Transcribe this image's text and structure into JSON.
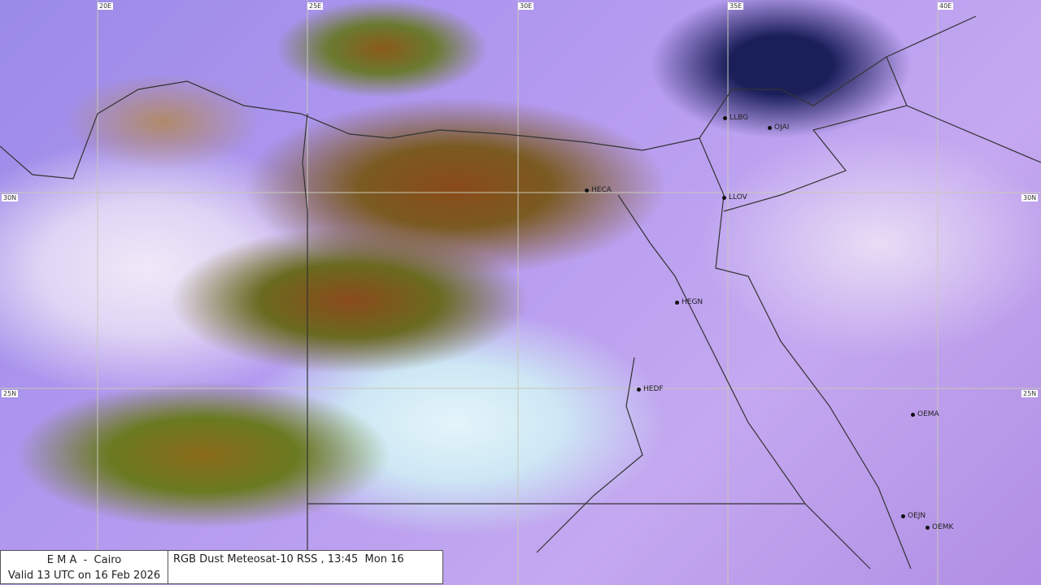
{
  "legend": {
    "agency": "E M A  -  Cairo",
    "valid": "Valid 13 UTC on 16 Feb 2026",
    "product": "RGB Dust Meteosat-10 RSS , 13:45  Mon 16"
  },
  "longitude_labels": [
    "20E",
    "25E",
    "30E",
    "35E",
    "40E"
  ],
  "latitude_labels": [
    "30N",
    "25N"
  ],
  "stations": [
    "HECA",
    "LLBG",
    "OJAI",
    "LLOV",
    "HEGN",
    "HEDF",
    "OEMA",
    "OEJN",
    "OEMK"
  ],
  "colors": {
    "dust": "#8a4a1a",
    "clear_desert": "#c4a8f0",
    "sea": "#9a8ae8",
    "deep_cloud": "#1a1f5a"
  }
}
